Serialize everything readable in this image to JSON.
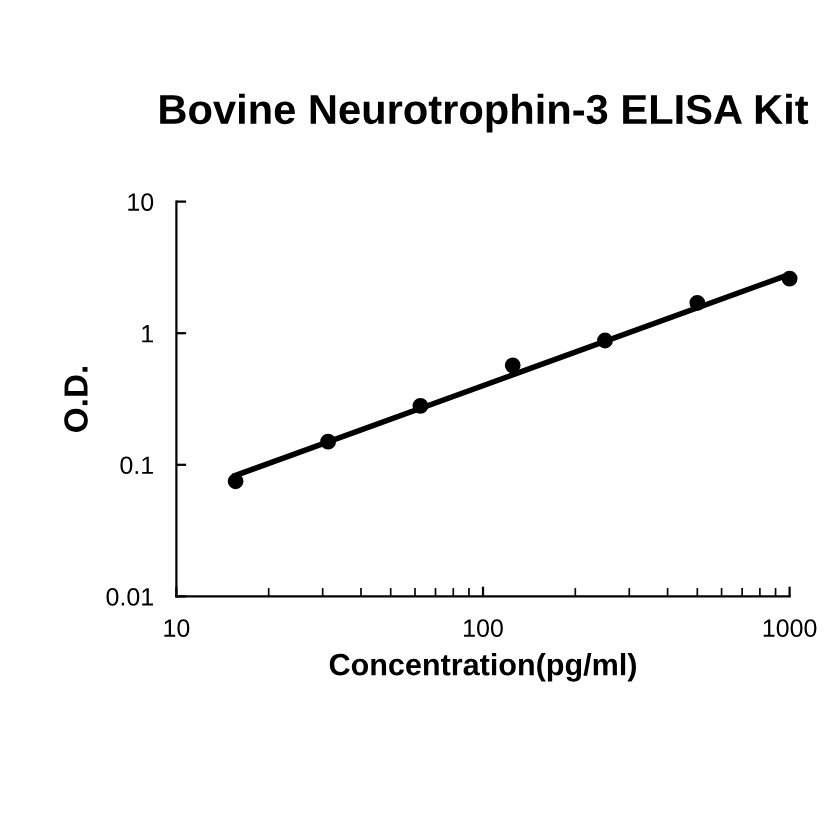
{
  "chart_data": {
    "type": "scatter",
    "title": "Bovine Neurotrophin-3 ELISA Kit",
    "xlabel": "Concentration(pg/ml)",
    "ylabel": "O.D.",
    "log": "xy",
    "xlim": [
      10,
      1000
    ],
    "xticks": [
      10,
      100,
      1000
    ],
    "ylim": [
      0.01,
      10
    ],
    "yticks": [
      0.01,
      0.1,
      1,
      10
    ],
    "grid": false,
    "series": [
      {
        "marker": "circle",
        "color": "#000000",
        "x": [
          15.6,
          31.25,
          62.5,
          125,
          250,
          500,
          1000
        ],
        "values": [
          0.075,
          0.15,
          0.28,
          0.57,
          0.88,
          1.7,
          2.6
        ]
      },
      {
        "type": "line",
        "marker": "none",
        "color": "#000000",
        "line_style": "solid",
        "x": [
          15.6,
          1000
        ],
        "values": [
          0.083,
          2.8
        ]
      }
    ]
  }
}
